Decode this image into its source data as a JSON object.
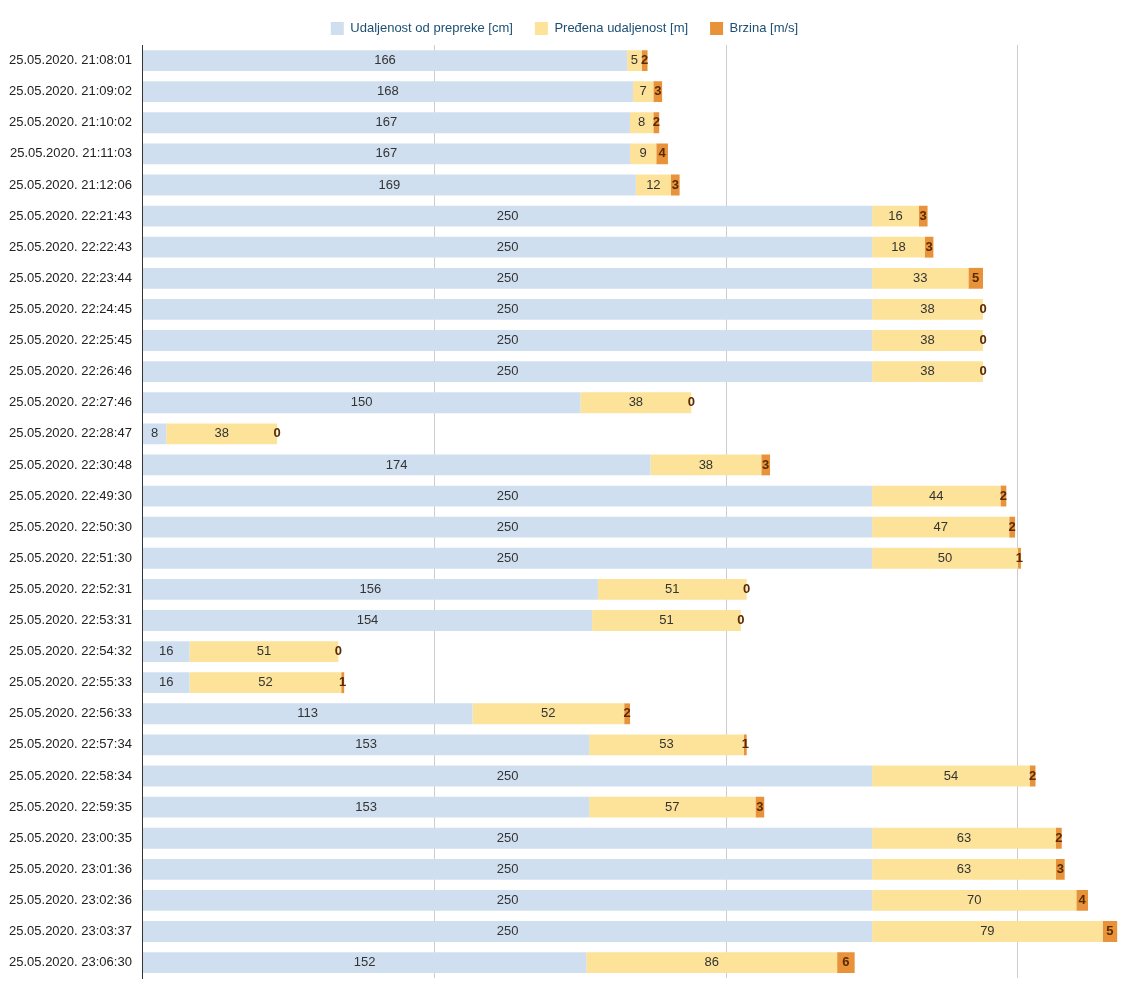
{
  "chart_data": {
    "type": "bar",
    "orientation": "horizontal",
    "stacked": true,
    "data_labels": true,
    "legend": "top",
    "grid": "x",
    "tick_labels": "y",
    "categories": [
      "25.05.2020. 21:08:01",
      "25.05.2020. 21:09:02",
      "25.05.2020. 21:10:02",
      "25.05.2020. 21:11:03",
      "25.05.2020. 21:12:06",
      "25.05.2020. 22:21:43",
      "25.05.2020. 22:22:43",
      "25.05.2020. 22:23:44",
      "25.05.2020. 22:24:45",
      "25.05.2020. 22:25:45",
      "25.05.2020. 22:26:46",
      "25.05.2020. 22:27:46",
      "25.05.2020. 22:28:47",
      "25.05.2020. 22:30:48",
      "25.05.2020. 22:49:30",
      "25.05.2020. 22:50:30",
      "25.05.2020. 22:51:30",
      "25.05.2020. 22:52:31",
      "25.05.2020. 22:53:31",
      "25.05.2020. 22:54:32",
      "25.05.2020. 22:55:33",
      "25.05.2020. 22:56:33",
      "25.05.2020. 22:57:34",
      "25.05.2020. 22:58:34",
      "25.05.2020. 22:59:35",
      "25.05.2020. 23:00:35",
      "25.05.2020. 23:01:36",
      "25.05.2020. 23:02:36",
      "25.05.2020. 23:03:37",
      "25.05.2020. 23:06:30"
    ],
    "xlim": [
      0,
      336
    ],
    "xticks": [
      {
        "value": 100,
        "label": null
      },
      {
        "value": 200,
        "label": null
      },
      {
        "value": 300,
        "label": null
      }
    ],
    "series": [
      {
        "name": "Udaljenost od prepreke [cm]",
        "color": "#cfdff0",
        "values": [
          166,
          168,
          167,
          167,
          169,
          250,
          250,
          250,
          250,
          250,
          250,
          150,
          8,
          174,
          250,
          250,
          250,
          156,
          154,
          16,
          16,
          113,
          153,
          250,
          153,
          250,
          250,
          250,
          250,
          152
        ]
      },
      {
        "name": "Pređena udaljenost [m]",
        "color": "#fde39a",
        "values": [
          5,
          7,
          8,
          9,
          12,
          16,
          18,
          33,
          38,
          38,
          38,
          38,
          38,
          38,
          44,
          47,
          50,
          51,
          51,
          51,
          52,
          52,
          53,
          54,
          57,
          63,
          63,
          70,
          79,
          86
        ]
      },
      {
        "name": "Brzina [m/s]",
        "color": "#e8923a",
        "values": [
          2,
          3,
          2,
          4,
          3,
          3,
          3,
          5,
          0,
          0,
          0,
          0,
          0,
          3,
          2,
          2,
          1,
          0,
          0,
          0,
          1,
          2,
          1,
          2,
          3,
          2,
          3,
          4,
          5,
          6
        ]
      }
    ]
  }
}
